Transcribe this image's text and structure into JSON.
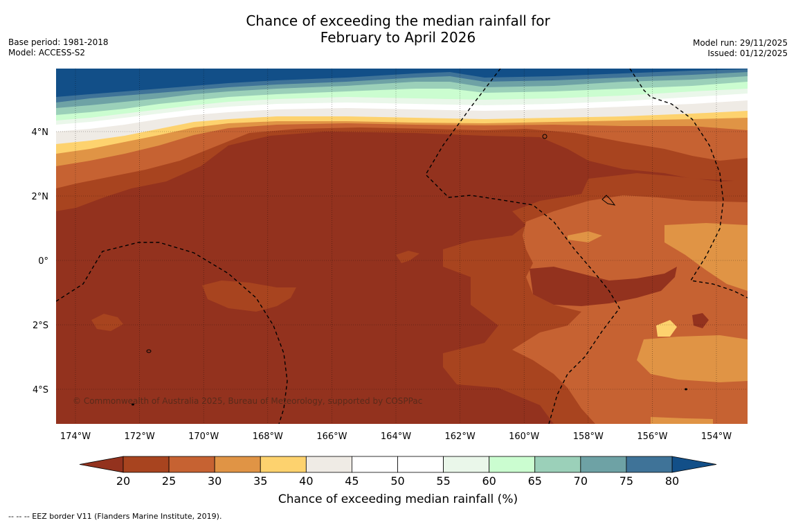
{
  "title": {
    "line1": "Chance of exceeding the median rainfall for",
    "line2": "February to April 2026"
  },
  "meta": {
    "base_period": "Base period: 1981-2018",
    "model": "Model: ACCESS-S2",
    "model_run": "Model run: 29/11/2025",
    "issued": "Issued: 01/12/2025"
  },
  "map": {
    "lon_labels": [
      "174°W",
      "172°W",
      "170°W",
      "168°W",
      "166°W",
      "164°W",
      "162°W",
      "160°W",
      "158°W",
      "156°W",
      "154°W"
    ],
    "lat_labels": [
      "4°N",
      "2°N",
      "0°",
      "2°S",
      "4°S"
    ],
    "copyright": "© Commonwealth of Australia 2025, Bureau of Meteorology, supported by COSPPac"
  },
  "colorbar": {
    "ticks": [
      "20",
      "25",
      "30",
      "35",
      "40",
      "45",
      "50",
      "55",
      "60",
      "65",
      "70",
      "75",
      "80"
    ],
    "colors": [
      "#a8441f",
      "#c66232",
      "#e09445",
      "#fdd26e",
      "#efebe5",
      "#ffffff",
      "#ffffff",
      "#eaf7ea",
      "#cbfdd0",
      "#9bd0b9",
      "#6ea2a5",
      "#3f7398"
    ],
    "under_color": "#93321e",
    "over_color": "#124f88",
    "label": "Chance of exceeding median rainfall (%)"
  },
  "footnote": "-- -- -- EEZ border V11 (Flanders Marine Institute, 2019)."
}
